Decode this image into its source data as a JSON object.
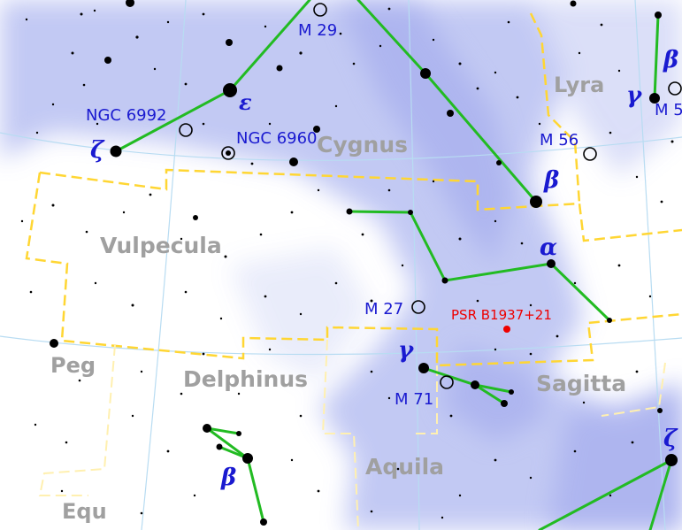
{
  "map": {
    "constellations": {
      "cygnus": "Cygnus",
      "lyra": "Lyra",
      "vulpecula": "Vulpecula",
      "delphinus": "Delphinus",
      "sagitta": "Sagitta",
      "aquila": "Aquila",
      "pegasus": "Peg",
      "equuleus": "Equ"
    },
    "objects": {
      "m29": "M 29",
      "ngc6992": "NGC 6992",
      "ngc6960": "NGC 6960",
      "m56": "M 56",
      "m27": "M 27",
      "m71": "M 71",
      "m57": "M 5"
    },
    "greek": {
      "cyg_epsilon": "ε",
      "cyg_zeta": "ζ",
      "cyg_beta": "β",
      "sge_alpha": "α",
      "sge_gamma": "γ",
      "del_beta": "β",
      "aql_zeta": "ζ",
      "lyr_gamma": "γ",
      "lyr_beta": "β"
    },
    "highlight": {
      "label": "PSR B1937+21",
      "color": "#ee0000"
    },
    "colors": {
      "milky_way": "#b8c0f2",
      "stick_figure": "#22bb22",
      "boundary": "#ffd633",
      "grid": "#b8dcf2",
      "constellation_label": "#a0a0a0",
      "object_label": "#1a1ad0"
    }
  }
}
